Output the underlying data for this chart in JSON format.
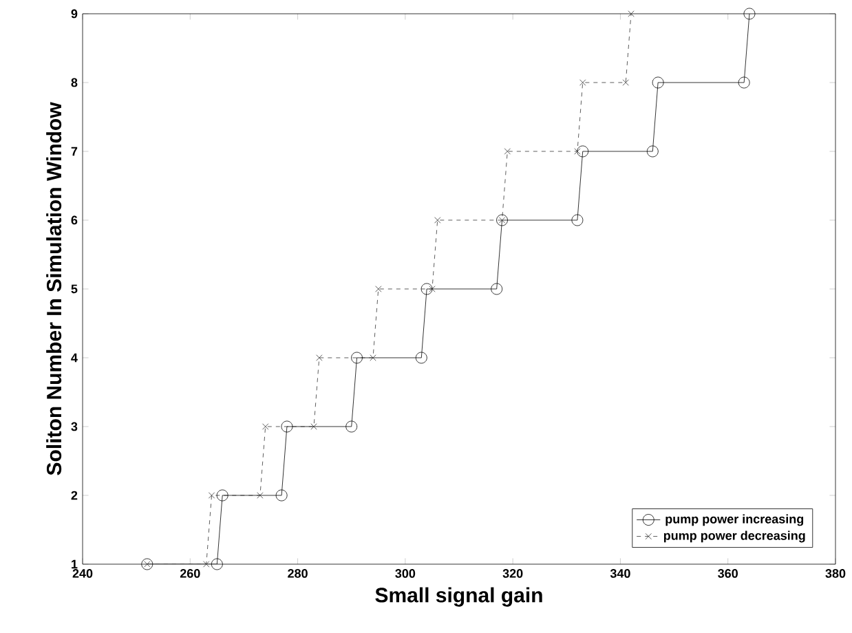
{
  "chart_data": {
    "type": "line",
    "xlabel": "Small signal gain",
    "ylabel": "Soliton Number In Simulation Window",
    "xlim": [
      240,
      380
    ],
    "ylim": [
      1,
      9
    ],
    "xticks": [
      240,
      260,
      280,
      300,
      320,
      340,
      360,
      380
    ],
    "yticks": [
      1,
      2,
      3,
      4,
      5,
      6,
      7,
      8,
      9
    ],
    "legend": "bottom right",
    "grid": false,
    "series": [
      {
        "name": "pump power increasing",
        "color": "#000000",
        "marker": "circle",
        "line_style": "solid",
        "x": [
          252,
          265,
          266,
          277,
          278,
          290,
          291,
          303,
          304,
          317,
          318,
          332,
          333,
          346,
          347,
          363,
          364
        ],
        "values": [
          1,
          1,
          2,
          2,
          3,
          3,
          4,
          4,
          5,
          5,
          6,
          6,
          7,
          7,
          8,
          8,
          9
        ]
      },
      {
        "name": "pump power decreasing",
        "color": "#333333",
        "marker": "cross",
        "line_style": "dashed",
        "x": [
          252,
          263,
          264,
          273,
          274,
          283,
          284,
          294,
          295,
          305,
          306,
          318,
          319,
          332,
          333,
          341,
          342
        ],
        "values": [
          1,
          1,
          2,
          2,
          3,
          3,
          4,
          4,
          5,
          5,
          6,
          6,
          7,
          7,
          8,
          8,
          9
        ]
      }
    ]
  }
}
